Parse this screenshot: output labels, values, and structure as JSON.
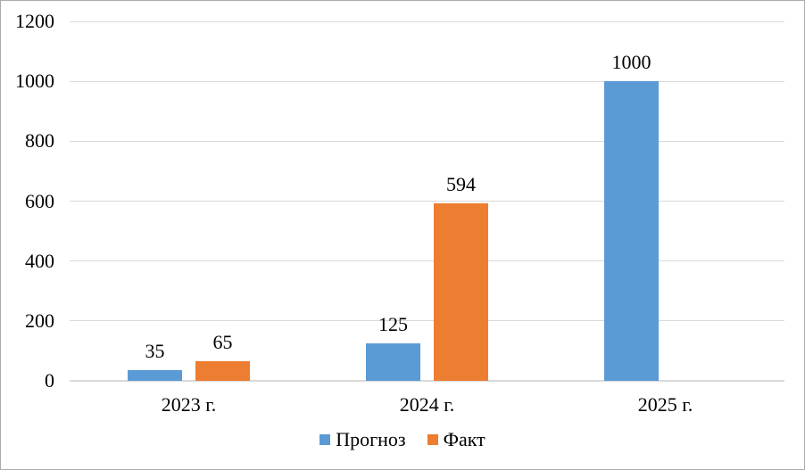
{
  "chart_data": {
    "type": "bar",
    "title": "",
    "xlabel": "",
    "ylabel": "",
    "categories": [
      "2023 г.",
      "2024 г.",
      "2025 г."
    ],
    "series": [
      {
        "name": "Прогноз",
        "color": "#5B9BD5",
        "values": [
          35,
          125,
          1000
        ]
      },
      {
        "name": "Факт",
        "color": "#ED7D31",
        "values": [
          65,
          594,
          null
        ]
      }
    ],
    "data_labels": true,
    "ylim": [
      0,
      1200
    ],
    "yticks": [
      0,
      200,
      400,
      600,
      800,
      1000,
      1200
    ],
    "grid": true,
    "legend_position": "bottom"
  },
  "colors": {
    "background": "#FFFFFF",
    "border": "#ABABAB",
    "gridline": "#D9D9D9",
    "axis_line": "#D9D9D9",
    "text": "#000000"
  }
}
